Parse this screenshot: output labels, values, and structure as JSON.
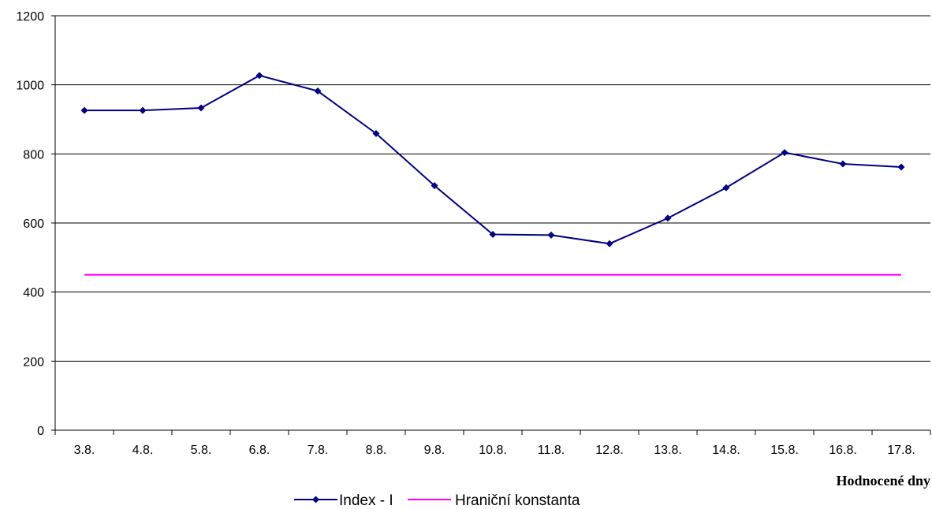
{
  "chart_data": {
    "type": "line",
    "categories": [
      "3.8.",
      "4.8.",
      "5.8.",
      "6.8.",
      "7.8.",
      "8.8.",
      "9.8.",
      "10.8.",
      "11.8.",
      "12.8.",
      "13.8.",
      "14.8.",
      "15.8.",
      "16.8.",
      "17.8."
    ],
    "series": [
      {
        "name": "Index - I",
        "color": "#000080",
        "marker": "diamond",
        "values": [
          926,
          926,
          933,
          1027,
          982,
          859,
          708,
          567,
          565,
          540,
          614,
          702,
          804,
          771,
          762
        ]
      },
      {
        "name": "Hraniční konstanta",
        "color": "#ff00ff",
        "marker": "none",
        "values": [
          450,
          450,
          450,
          450,
          450,
          450,
          450,
          450,
          450,
          450,
          450,
          450,
          450,
          450,
          450
        ]
      }
    ],
    "xlabel": "Hodnocené dny",
    "ylabel": "",
    "ylim": [
      0,
      1200
    ],
    "yticks": [
      0,
      200,
      400,
      600,
      800,
      1000,
      1200
    ],
    "grid": "horizontal",
    "legend": "bottom"
  }
}
